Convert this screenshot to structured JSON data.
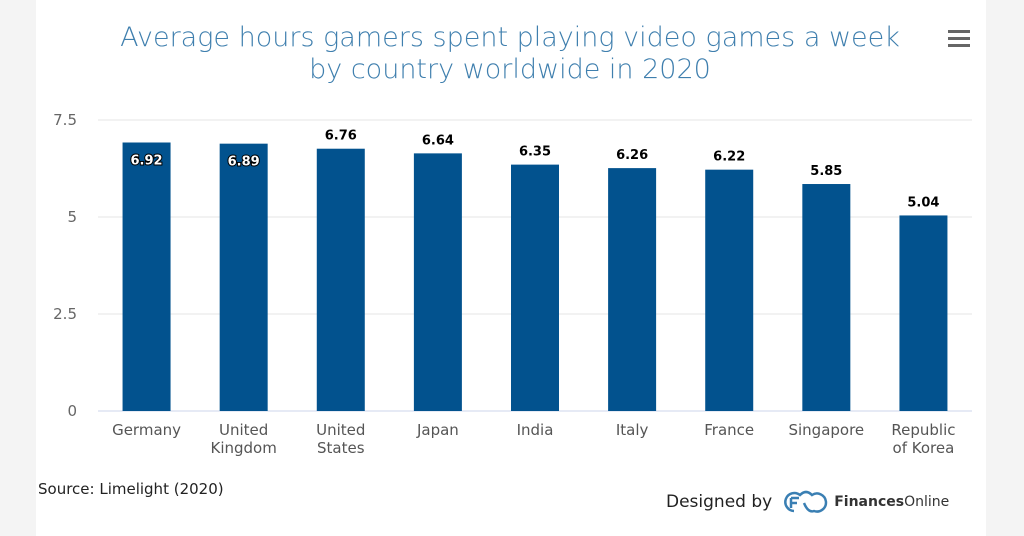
{
  "chart_data": {
    "type": "bar",
    "title": "Average hours gamers spent playing video games a week by country worldwide in 2020",
    "categories": [
      [
        "Germany"
      ],
      [
        "United",
        "Kingdom"
      ],
      [
        "United",
        "States"
      ],
      [
        "Japan"
      ],
      [
        "India"
      ],
      [
        "Italy"
      ],
      [
        "France"
      ],
      [
        "Singapore"
      ],
      [
        "Republic",
        "of Korea"
      ]
    ],
    "values": [
      6.92,
      6.89,
      6.76,
      6.64,
      6.35,
      6.26,
      6.22,
      5.85,
      5.04
    ],
    "data_labels": [
      "6.92",
      "6.89",
      "6.76",
      "6.64",
      "6.35",
      "6.26",
      "6.22",
      "5.85",
      "5.04"
    ],
    "inside_label_count": 2,
    "yticks": [
      0,
      2.5,
      5,
      7.5
    ],
    "ytick_labels": [
      "0",
      "2.5",
      "5",
      "7.5"
    ],
    "ylim": [
      0,
      7.5
    ],
    "xlabel": "",
    "ylabel": "",
    "grid": true,
    "bar_color": "#02528e"
  },
  "source": "Source: Limelight (2020)",
  "credit": {
    "prefix": "Designed by",
    "brand_bold": "Finances",
    "brand_rest": "Online"
  }
}
